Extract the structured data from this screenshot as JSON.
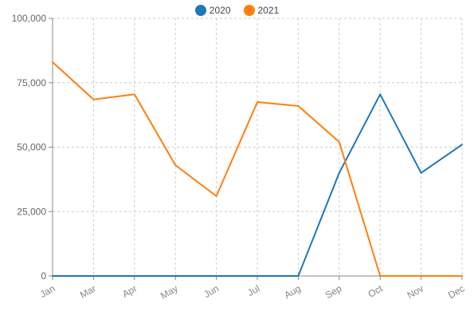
{
  "chart_data": {
    "type": "line",
    "categories": [
      "Jan",
      "Mar",
      "Apr",
      "May",
      "Jun",
      "Jul",
      "Aug",
      "Sep",
      "Oct",
      "Nov",
      "Dec"
    ],
    "series": [
      {
        "name": "2020",
        "color": "#1f77b4",
        "values": [
          0,
          0,
          0,
          0,
          0,
          0,
          0,
          40000,
          70500,
          40000,
          51000
        ]
      },
      {
        "name": "2021",
        "color": "#ff7f0e",
        "values": [
          83000,
          68500,
          70500,
          43000,
          31000,
          67500,
          66000,
          52000,
          0,
          0,
          0
        ]
      }
    ],
    "y_ticks": [
      "0",
      "25,000",
      "50,000",
      "75,000",
      "100,000"
    ],
    "ylim": [
      0,
      100000
    ],
    "grid": true,
    "legend_position": "top-center"
  }
}
